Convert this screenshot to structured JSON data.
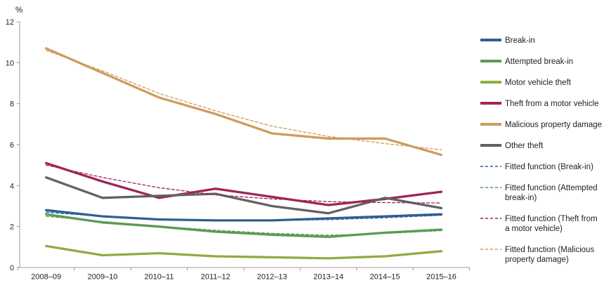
{
  "chart_data": {
    "type": "line",
    "title": "",
    "ylabel": "%",
    "xlabel": "",
    "ylim": [
      0,
      12
    ],
    "yticks": [
      0,
      2,
      4,
      6,
      8,
      10,
      12
    ],
    "grid": false,
    "legend_position": "right",
    "categories": [
      "2008–09",
      "2009–10",
      "2010–11",
      "2011–12",
      "2012–13",
      "2013–14",
      "2014–15",
      "2015–16"
    ],
    "series": [
      {
        "name": "Break-in",
        "color": "#2e6093",
        "style": "solid",
        "values": [
          2.8,
          2.5,
          2.35,
          2.3,
          2.3,
          2.4,
          2.5,
          2.6
        ]
      },
      {
        "name": "Attempted break-in",
        "color": "#5b9b56",
        "style": "solid",
        "values": [
          2.6,
          2.2,
          2.0,
          1.75,
          1.6,
          1.5,
          1.7,
          1.85
        ]
      },
      {
        "name": "Motor vehicle theft",
        "color": "#8ead40",
        "style": "solid",
        "values": [
          1.05,
          0.6,
          0.7,
          0.55,
          0.5,
          0.45,
          0.55,
          0.8
        ]
      },
      {
        "name": "Theft from a motor vehicle",
        "color": "#a02459",
        "style": "solid",
        "values": [
          5.1,
          4.2,
          3.4,
          3.85,
          3.45,
          3.05,
          3.35,
          3.7
        ]
      },
      {
        "name": "Malicious property damage",
        "color": "#cd9c5e",
        "style": "solid",
        "values": [
          10.7,
          9.5,
          8.3,
          7.5,
          6.55,
          6.3,
          6.3,
          5.5
        ]
      },
      {
        "name": "Other theft",
        "color": "#626262",
        "style": "solid",
        "values": [
          4.4,
          3.4,
          3.5,
          3.6,
          3.0,
          2.65,
          3.4,
          2.9
        ]
      },
      {
        "name": "Fitted function (Break-in)",
        "color": "#2e6093",
        "style": "dashed",
        "values": [
          2.7,
          2.5,
          2.36,
          2.3,
          2.29,
          2.34,
          2.43,
          2.55
        ]
      },
      {
        "name": "Fitted function (Attempted break-in)",
        "color": "#5b9b56",
        "style": "dashed",
        "values": [
          2.5,
          2.25,
          2.02,
          1.82,
          1.67,
          1.58,
          1.66,
          1.8
        ]
      },
      {
        "name": "Fitted function (Theft from a motor vehicle)",
        "color": "#a02459",
        "style": "dashed",
        "values": [
          5.0,
          4.4,
          3.9,
          3.55,
          3.35,
          3.22,
          3.17,
          3.15
        ]
      },
      {
        "name": "Fitted function (Malicious property damage)",
        "color": "#cd9c5e",
        "style": "dashed",
        "values": [
          10.6,
          9.6,
          8.5,
          7.65,
          6.9,
          6.4,
          6.05,
          5.75
        ]
      }
    ],
    "axis_color": "#9b9b9b"
  }
}
